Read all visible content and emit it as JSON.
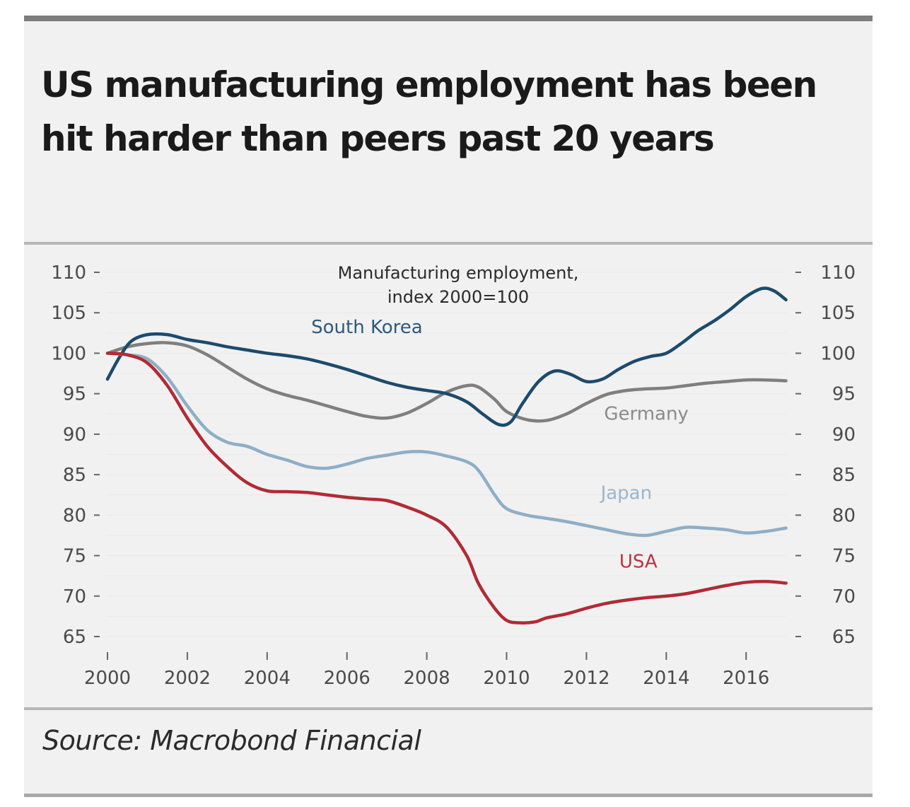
{
  "title": "US manufacturing employment has been hit harder than peers past 20 years",
  "source": "Source: Macrobond Financial",
  "chart_data": {
    "type": "line",
    "title": "US manufacturing employment has been hit harder than peers past 20 years",
    "subtitle": [
      "Manufacturing employment,",
      "index 2000=100"
    ],
    "xlabel": "",
    "ylabel": "",
    "xlim": [
      2000,
      2017.1
    ],
    "ylim": [
      65,
      110
    ],
    "yticks": [
      110,
      105,
      100,
      95,
      90,
      85,
      80,
      75,
      70,
      65
    ],
    "xticks": [
      2000,
      2002,
      2004,
      2006,
      2008,
      2010,
      2012,
      2014,
      2016
    ],
    "y_axis_both_sides": true,
    "grid": true,
    "legend": "inline-labels",
    "series": [
      {
        "name": "South Korea",
        "color": "#1d4a6b",
        "label_color": "#2e5a7a",
        "label_pos": [
          2006.5,
          102.5
        ],
        "x": [
          2000,
          2000.3,
          2000.6,
          2001.0,
          2001.5,
          2002.0,
          2002.5,
          2003.0,
          2003.5,
          2004.0,
          2004.5,
          2005.0,
          2005.5,
          2006.0,
          2006.5,
          2007.0,
          2007.5,
          2008.0,
          2008.5,
          2009.0,
          2009.4,
          2009.8,
          2010.1,
          2010.4,
          2010.8,
          2011.2,
          2011.6,
          2012.0,
          2012.4,
          2012.8,
          2013.2,
          2013.6,
          2014.0,
          2014.4,
          2014.8,
          2015.2,
          2015.6,
          2016.0,
          2016.4,
          2016.7,
          2017.0
        ],
        "values": [
          96.8,
          99.5,
          101.5,
          102.3,
          102.3,
          101.7,
          101.3,
          100.8,
          100.4,
          100.0,
          99.7,
          99.3,
          98.7,
          98.0,
          97.2,
          96.4,
          95.8,
          95.4,
          95.0,
          94.0,
          92.5,
          91.2,
          91.5,
          93.8,
          96.5,
          97.8,
          97.4,
          96.5,
          96.8,
          98.0,
          99.0,
          99.6,
          100.0,
          101.3,
          102.8,
          104.0,
          105.4,
          107.0,
          108.0,
          107.7,
          106.6
        ]
      },
      {
        "name": "Germany",
        "color": "#7f7f7f",
        "label_color": "#8a8a8a",
        "label_pos": [
          2013.5,
          91.8
        ],
        "x": [
          2000,
          2000.5,
          2001.0,
          2001.5,
          2002.0,
          2002.5,
          2003.0,
          2003.5,
          2004.0,
          2004.5,
          2005.0,
          2005.5,
          2006.0,
          2006.5,
          2007.0,
          2007.5,
          2008.0,
          2008.5,
          2009.0,
          2009.3,
          2009.7,
          2010.0,
          2010.5,
          2011.0,
          2011.5,
          2012.0,
          2012.5,
          2013.0,
          2013.5,
          2014.0,
          2014.5,
          2015.0,
          2015.5,
          2016.0,
          2016.5,
          2017.0
        ],
        "values": [
          100.0,
          100.8,
          101.2,
          101.3,
          100.9,
          99.8,
          98.3,
          96.8,
          95.6,
          94.8,
          94.2,
          93.5,
          92.8,
          92.2,
          92.0,
          92.6,
          93.8,
          95.2,
          96.0,
          95.8,
          94.3,
          92.8,
          91.8,
          91.7,
          92.5,
          93.8,
          94.9,
          95.4,
          95.6,
          95.7,
          96.0,
          96.3,
          96.5,
          96.7,
          96.7,
          96.6
        ]
      },
      {
        "name": "Japan",
        "color": "#8faec6",
        "label_color": "#9ab6cc",
        "label_pos": [
          2013.0,
          82.0
        ],
        "x": [
          2000,
          2000.5,
          2001.0,
          2001.5,
          2002.0,
          2002.5,
          2003.0,
          2003.5,
          2004.0,
          2004.5,
          2005.0,
          2005.5,
          2006.0,
          2006.5,
          2007.0,
          2007.5,
          2008.0,
          2008.5,
          2009.0,
          2009.3,
          2009.7,
          2010.0,
          2010.5,
          2011.0,
          2011.5,
          2012.0,
          2012.5,
          2013.0,
          2013.5,
          2014.0,
          2014.5,
          2015.0,
          2015.5,
          2016.0,
          2016.5,
          2017.0
        ],
        "values": [
          100.0,
          99.8,
          99.3,
          97.0,
          93.5,
          90.5,
          89.0,
          88.5,
          87.5,
          86.8,
          86.0,
          85.8,
          86.3,
          87.0,
          87.4,
          87.8,
          87.8,
          87.3,
          86.6,
          85.5,
          82.5,
          80.8,
          80.0,
          79.6,
          79.2,
          78.7,
          78.2,
          77.7,
          77.5,
          78.0,
          78.5,
          78.4,
          78.2,
          77.8,
          78.0,
          78.4
        ]
      },
      {
        "name": "USA",
        "color": "#b12a35",
        "label_color": "#c0303d",
        "label_pos": [
          2013.3,
          73.5
        ],
        "x": [
          2000,
          2000.5,
          2001.0,
          2001.5,
          2002.0,
          2002.5,
          2003.0,
          2003.5,
          2004.0,
          2004.5,
          2005.0,
          2005.5,
          2006.0,
          2006.5,
          2007.0,
          2007.5,
          2008.0,
          2008.5,
          2009.0,
          2009.3,
          2009.7,
          2010.0,
          2010.3,
          2010.7,
          2011.0,
          2011.5,
          2012.0,
          2012.5,
          2013.0,
          2013.5,
          2014.0,
          2014.5,
          2015.0,
          2015.5,
          2016.0,
          2016.5,
          2017.0
        ],
        "values": [
          100.0,
          99.8,
          98.8,
          96.0,
          92.0,
          88.5,
          86.0,
          84.0,
          83.0,
          82.9,
          82.8,
          82.5,
          82.2,
          82.0,
          81.8,
          81.0,
          80.0,
          78.5,
          75.0,
          71.5,
          68.5,
          67.0,
          66.7,
          66.8,
          67.3,
          67.8,
          68.5,
          69.1,
          69.5,
          69.8,
          70.0,
          70.3,
          70.8,
          71.3,
          71.7,
          71.8,
          71.6
        ]
      }
    ]
  }
}
